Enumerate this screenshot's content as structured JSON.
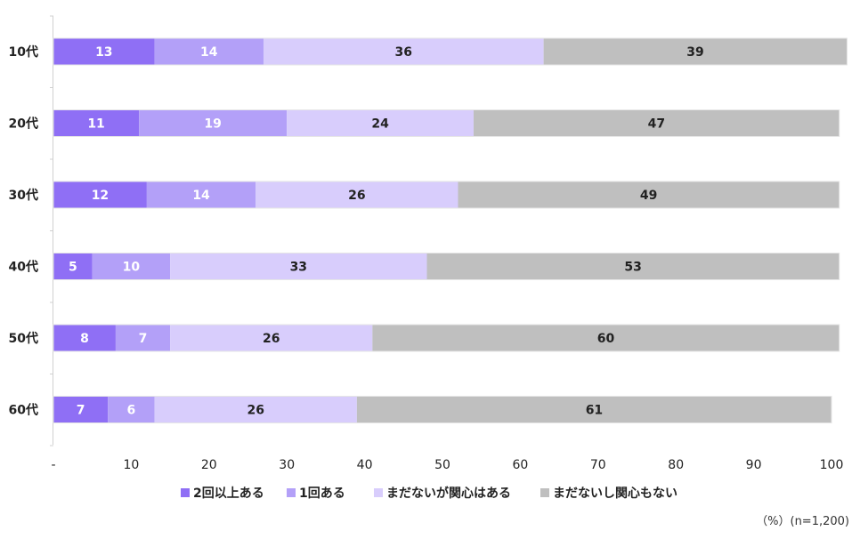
{
  "chart_data": {
    "type": "bar",
    "orientation": "horizontal",
    "stacked": true,
    "categories": [
      "10代",
      "20代",
      "30代",
      "40代",
      "50代",
      "60代"
    ],
    "series": [
      {
        "name": "2回以上ある",
        "color": "#8f6ff5",
        "label_color": "#ffffff",
        "values": [
          13,
          11,
          12,
          5,
          8,
          7
        ]
      },
      {
        "name": "1回ある",
        "color": "#b3a0f8",
        "label_color": "#ffffff",
        "values": [
          14,
          19,
          14,
          10,
          7,
          6
        ]
      },
      {
        "name": "まだないが関心はある",
        "color": "#d8cdfc",
        "label_color": "#222222",
        "values": [
          36,
          24,
          26,
          33,
          26,
          26
        ]
      },
      {
        "name": "まだないし関心もない",
        "color": "#bfbfbf",
        "label_color": "#222222",
        "values": [
          39,
          47,
          49,
          53,
          60,
          61
        ]
      }
    ],
    "xlim": [
      0,
      100
    ],
    "xticks": [
      "-",
      "10",
      "20",
      "30",
      "40",
      "50",
      "60",
      "70",
      "80",
      "90",
      "100"
    ],
    "legend_position": "bottom",
    "grid": false
  },
  "note": "（%）(n=1,200)"
}
